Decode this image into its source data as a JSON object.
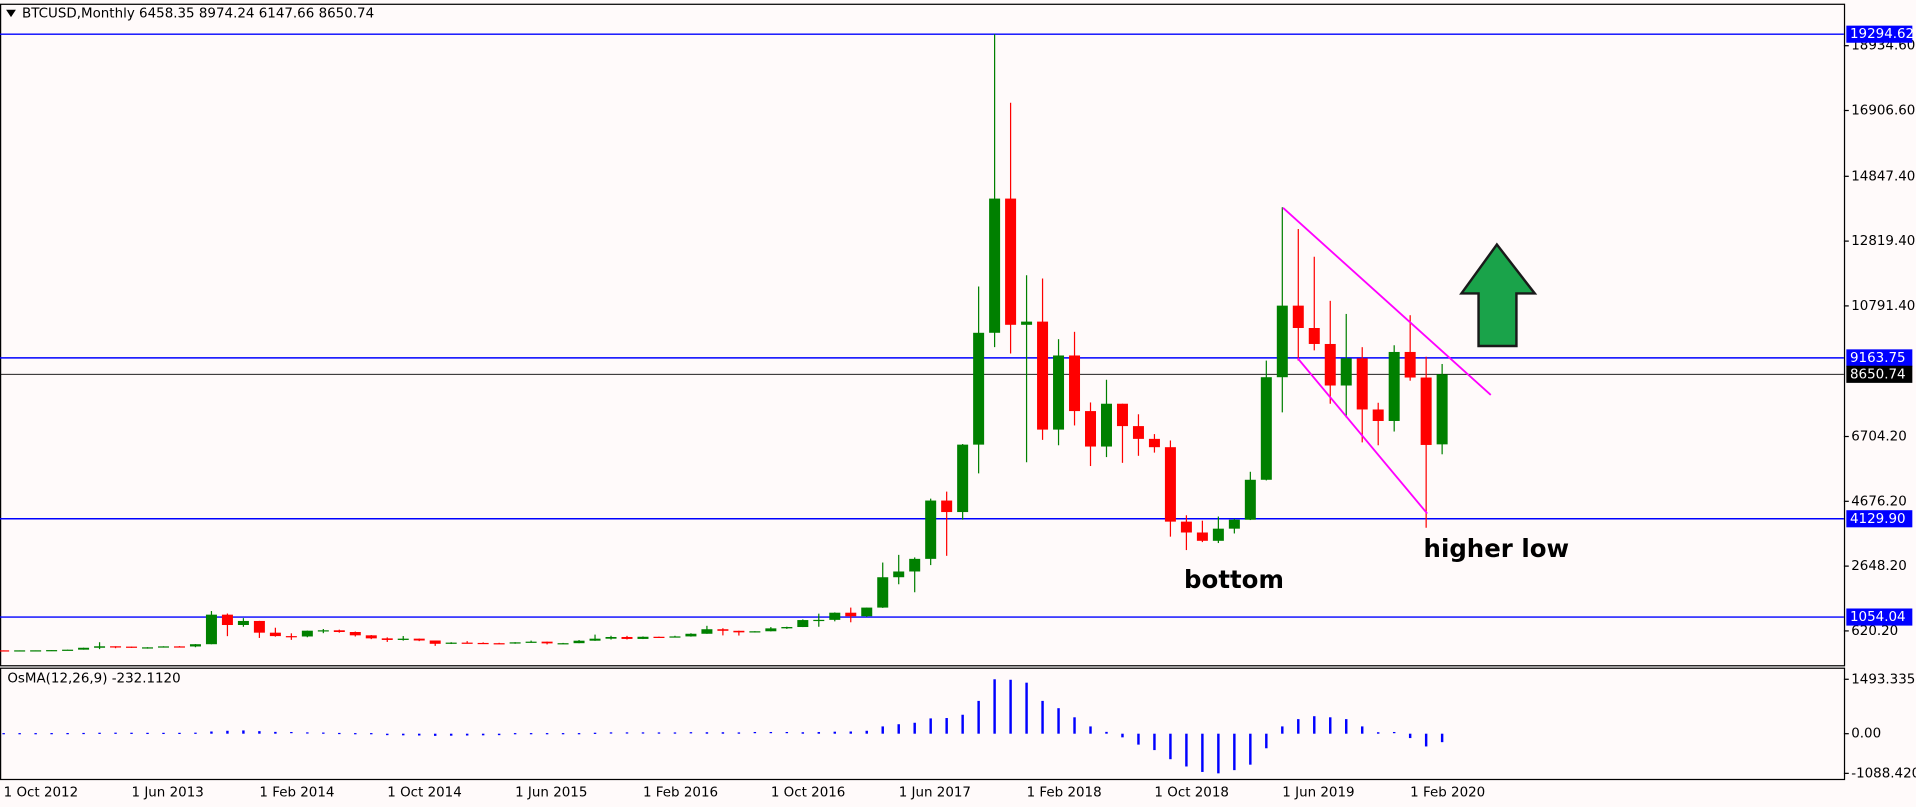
{
  "chart_data": {
    "type": "candlestick",
    "title": "BTCUSD,Monthly",
    "categories": [
      "1 Oct 2012",
      null,
      null,
      null,
      null,
      null,
      null,
      null,
      "1 Jun 2013",
      null,
      null,
      null,
      null,
      null,
      null,
      null,
      "1 Feb 2014",
      null,
      null,
      null,
      null,
      null,
      null,
      null,
      "1 Oct 2014",
      null,
      null,
      null,
      null,
      null,
      null,
      null,
      "1 Jun 2015",
      null,
      null,
      null,
      null,
      null,
      null,
      null,
      "1 Feb 2016",
      null,
      null,
      null,
      null,
      null,
      null,
      null,
      "1 Oct 2016",
      null,
      null,
      null,
      null,
      null,
      null,
      null,
      "1 Jun 2017",
      null,
      null,
      null,
      null,
      null,
      null,
      null,
      "1 Feb 2018",
      null,
      null,
      null,
      null,
      null,
      null,
      null,
      "1 Oct 2018",
      null,
      null,
      null,
      null,
      null,
      null,
      null,
      "1 Jun 2019",
      null,
      null,
      null,
      null,
      null,
      null,
      null,
      "1 Feb 2020",
      null,
      null
    ],
    "open": [
      12.4,
      11.2,
      12.6,
      13.5,
      20.4,
      33,
      93,
      139,
      129,
      97,
      106,
      136,
      133,
      204,
      1129,
      805,
      932,
      565,
      458,
      446,
      627,
      640,
      586,
      482,
      387,
      337,
      378,
      320,
      217,
      254,
      244,
      236,
      230,
      263,
      284,
      230,
      236,
      314,
      377,
      430,
      369,
      437,
      416,
      448,
      531,
      673,
      624,
      575,
      609,
      700,
      742,
      960,
      966,
      1190,
      1080,
      1350,
      2300,
      2480,
      2875,
      4700,
      4340,
      6450,
      9950,
      14150,
      10200,
      10300,
      6920,
      9240,
      7500,
      6390,
      7730,
      7030,
      6630,
      6370,
      4040,
      3700,
      3440,
      3820,
      4100,
      5350,
      8560,
      10800,
      10100,
      9600,
      8300,
      9150,
      7550,
      7190,
      9350,
      8550,
      6458.35
    ],
    "high": [
      12.9,
      12.6,
      13.9,
      21,
      33,
      95,
      266,
      140,
      129,
      111,
      140,
      145,
      209,
      1242,
      1165,
      1020,
      935,
      720,
      545,
      630,
      680,
      660,
      601,
      492,
      418,
      460,
      383,
      320,
      267,
      300,
      262,
      248,
      268,
      317,
      286,
      245,
      335,
      505,
      468,
      465,
      448,
      441,
      468,
      547,
      780,
      704,
      627,
      611,
      740,
      752,
      980,
      1160,
      1200,
      1350,
      1350,
      2760,
      3000,
      2920,
      4760,
      4980,
      6470,
      11400,
      19294.62,
      17150,
      11750,
      11650,
      9750,
      9980,
      7770,
      8480,
      7730,
      7400,
      6780,
      6580,
      4240,
      4070,
      4200,
      4130,
      5600,
      9080,
      13880,
      13200,
      12330,
      10950,
      10540,
      9500,
      7760,
      9560,
      10500,
      9200,
      8974.24
    ],
    "low": [
      9.9,
      10.3,
      12.5,
      13,
      19.5,
      33,
      50,
      79,
      88,
      65,
      100,
      118,
      110,
      203,
      456,
      750,
      400,
      440,
      340,
      422,
      550,
      565,
      445,
      363,
      275,
      317,
      300,
      152,
      210,
      236,
      215,
      225,
      217,
      253,
      198,
      225,
      236,
      309,
      349,
      351,
      365,
      400,
      414,
      440,
      530,
      480,
      475,
      569,
      605,
      683,
      740,
      750,
      920,
      890,
      1060,
      1340,
      2080,
      1830,
      2680,
      2970,
      4100,
      5550,
      9500,
      9300,
      5900,
      6600,
      6430,
      7050,
      5780,
      6060,
      5880,
      6100,
      6200,
      3570,
      3150,
      3400,
      3370,
      3670,
      4090,
      5330,
      7460,
      9080,
      9400,
      7730,
      7300,
      6520,
      6430,
      6860,
      8450,
      3850,
      6147.66
    ],
    "close": [
      11.2,
      12.6,
      13.5,
      20.4,
      33,
      93,
      139,
      129,
      97,
      106,
      136,
      133,
      204,
      1129,
      805,
      932,
      565,
      458,
      446,
      627,
      640,
      586,
      482,
      387,
      337,
      378,
      320,
      217,
      254,
      244,
      236,
      230,
      263,
      284,
      230,
      236,
      314,
      377,
      430,
      369,
      437,
      416,
      448,
      531,
      673,
      624,
      575,
      609,
      700,
      742,
      960,
      966,
      1190,
      1080,
      1350,
      2300,
      2480,
      2875,
      4700,
      4340,
      6450,
      9950,
      14150,
      10200,
      10300,
      6920,
      9240,
      7500,
      6390,
      7730,
      7030,
      6630,
      6370,
      4040,
      3700,
      3440,
      3820,
      4100,
      5350,
      8560,
      10800,
      10100,
      9600,
      8300,
      9150,
      7550,
      7190,
      9350,
      8550,
      6440,
      8650.74
    ],
    "up_color": "#008000",
    "down_color": "#ff0000",
    "ylim": [
      -490,
      20250
    ],
    "yticks": [
      {
        "value": 620.2,
        "label": "620.20"
      },
      {
        "value": 2648.2,
        "label": "2648.20"
      },
      {
        "value": 4676.2,
        "label": "4676.20"
      },
      {
        "value": 6704.2,
        "label": "6704.20"
      },
      {
        "value": 10791.4,
        "label": "10791.40"
      },
      {
        "value": 12819.4,
        "label": "12819.40"
      },
      {
        "value": 14847.4,
        "label": "14847.40"
      },
      {
        "value": 16906.6,
        "label": "16906.60"
      },
      {
        "value": 18934.6,
        "label": "18934.60"
      }
    ],
    "hlines": {
      "values": [
        19294.62,
        9163.75,
        4129.9,
        1054.04
      ],
      "value_labels": [
        "19294.62",
        "9163.75",
        "4129.90",
        "1054.04"
      ],
      "color": "#0000ff"
    },
    "price_line_color": "#000000",
    "annotations": [
      "bottom",
      "higher low"
    ],
    "indicator": {
      "type": "bar",
      "label": "OsMA(12,26,9) -232.1120",
      "color": "#0000ff",
      "values": [
        0,
        0,
        0,
        1,
        2,
        5,
        10,
        12,
        10,
        8,
        8,
        8,
        12,
        60,
        80,
        90,
        70,
        50,
        30,
        20,
        15,
        5,
        -10,
        -25,
        -40,
        -45,
        -50,
        -60,
        -55,
        -50,
        -45,
        -40,
        -30,
        -20,
        -20,
        -15,
        -5,
        10,
        20,
        20,
        20,
        18,
        18,
        25,
        40,
        40,
        35,
        30,
        30,
        30,
        40,
        45,
        55,
        60,
        80,
        200,
        260,
        300,
        420,
        430,
        520,
        900,
        1493.3352,
        1480,
        1400,
        900,
        700,
        450,
        200,
        50,
        -100,
        -300,
        -450,
        -700,
        -900,
        -1050,
        -1088.4207,
        -1000,
        -850,
        -400,
        200,
        400,
        480,
        450,
        400,
        200,
        40,
        30,
        -120,
        -350,
        -232.112
      ],
      "ylim": [
        -1240,
        1780
      ],
      "yticks": [
        1493.3352,
        {
          "value": 0,
          "label": "0.00"
        },
        -1088.4207
      ]
    }
  }
}
